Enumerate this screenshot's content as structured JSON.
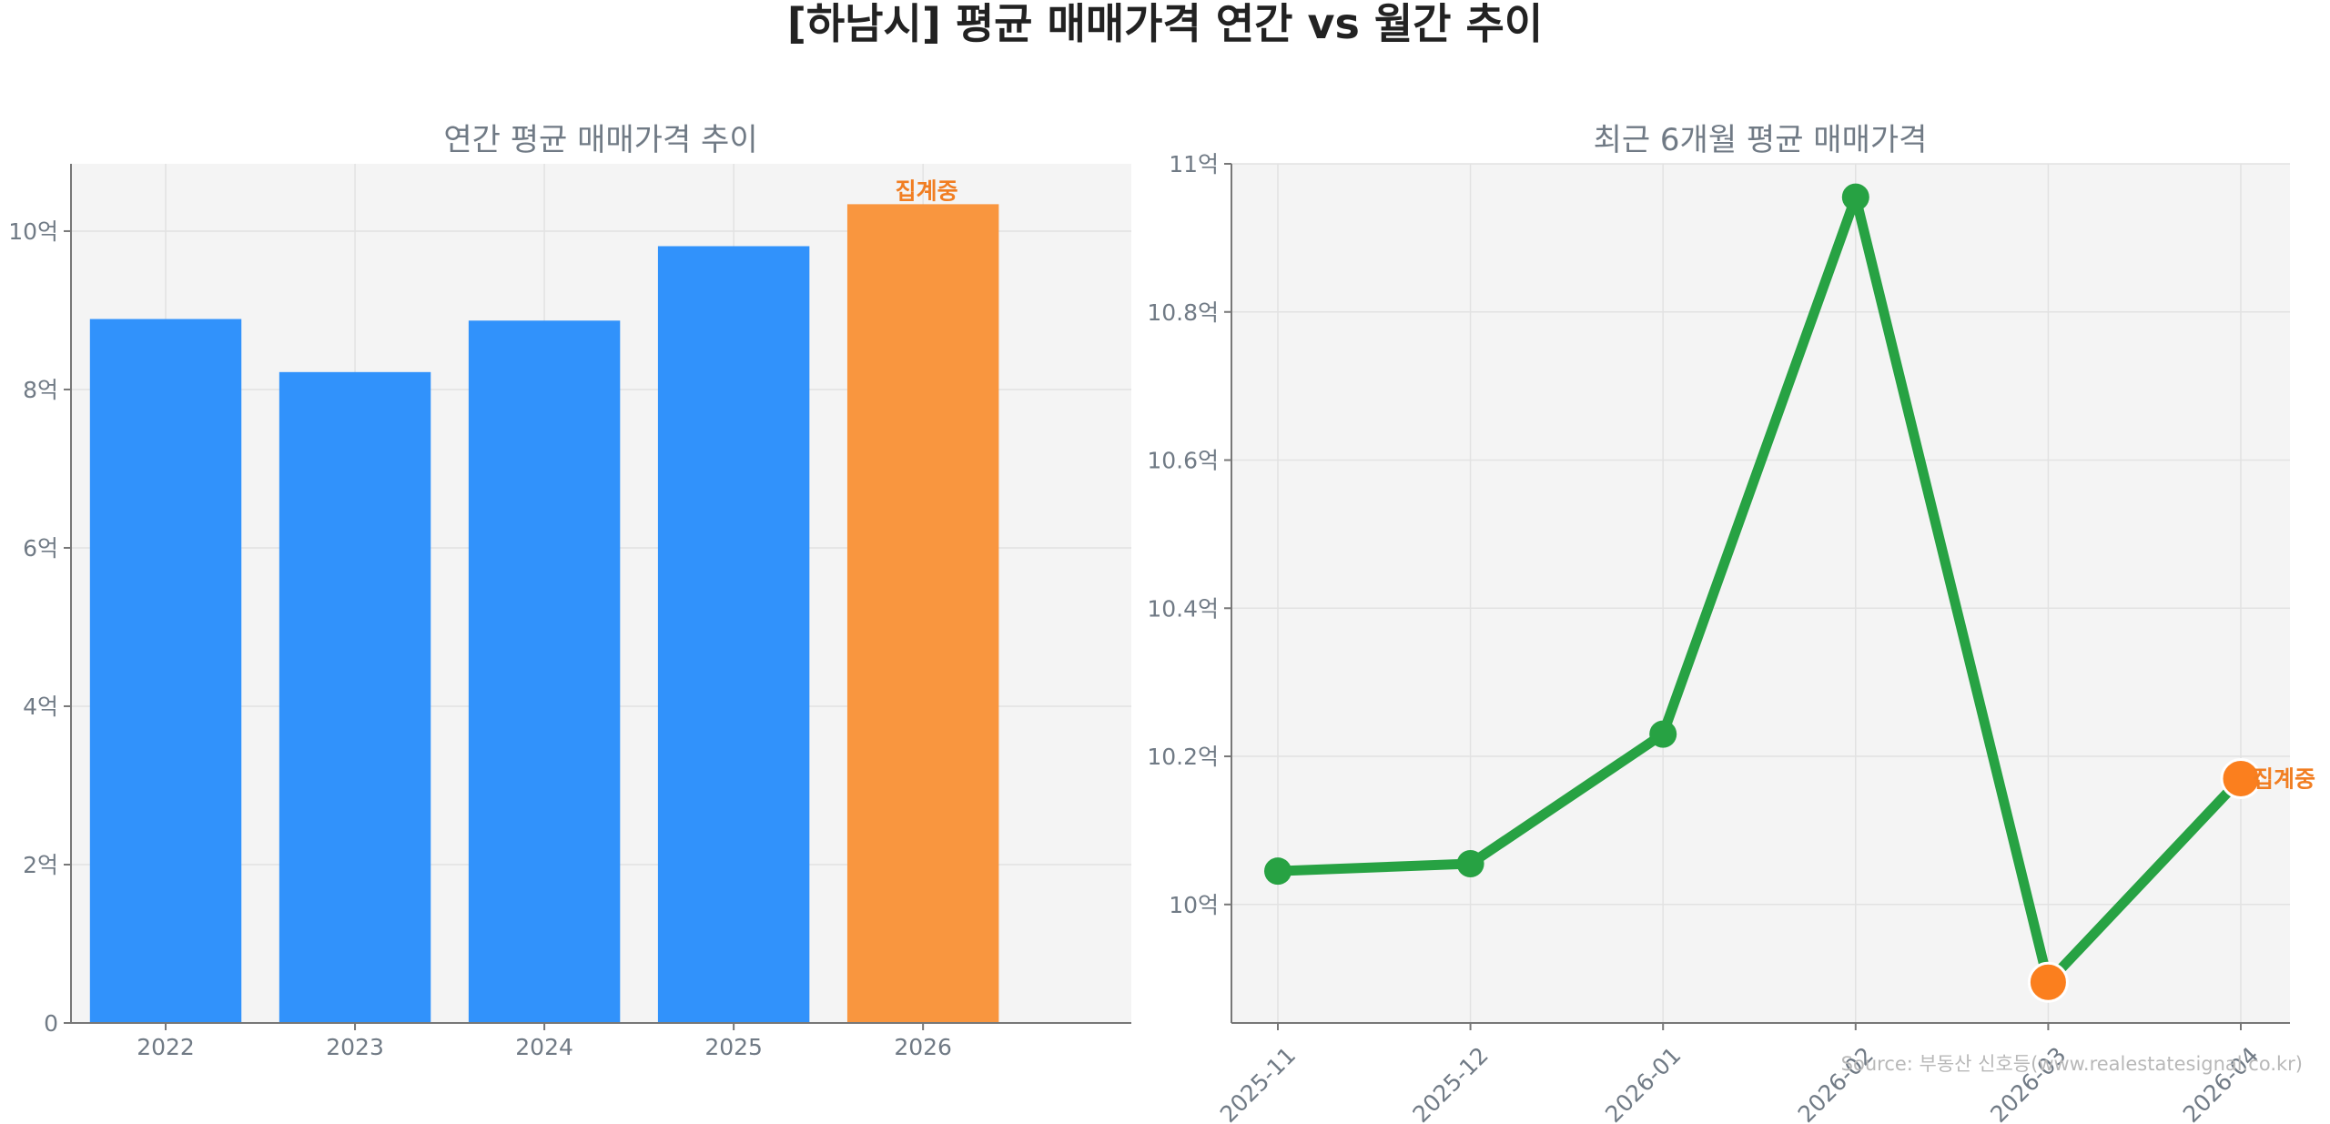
{
  "title": "[하남시] 평균 매매가격 연간 vs 월간 추이",
  "source": "Source: 부동산 신호등(www.realestatesignal.co.kr)",
  "colors": {
    "bar": "#3192fb",
    "partial": "#f9963f",
    "line": "#27a243",
    "partial_marker": "#fb7f1e",
    "panel_bg": "#f4f4f4"
  },
  "chart_data": [
    {
      "type": "bar",
      "title": "연간 평균 매매가격 추이",
      "categories": [
        "2022",
        "2023",
        "2024",
        "2025",
        "2026"
      ],
      "values": [
        8.89,
        8.22,
        8.87,
        9.81,
        10.34
      ],
      "unit": "억",
      "ylim": [
        0,
        10.85
      ],
      "yticks": [
        0,
        2,
        4,
        6,
        8,
        10
      ],
      "ytick_labels": [
        "0",
        "2억",
        "4억",
        "6억",
        "8억",
        "10억"
      ],
      "partial_index": 4,
      "partial_label": "집계중",
      "grid": true
    },
    {
      "type": "line",
      "title": "최근 6개월 평균 매매가격",
      "categories": [
        "2025-11",
        "2025-12",
        "2026-01",
        "2026-02",
        "2026-03",
        "2026-04"
      ],
      "values": [
        10.045,
        10.055,
        10.23,
        10.955,
        9.895,
        10.17
      ],
      "unit": "억",
      "ylim": [
        9.84,
        11.0
      ],
      "yticks": [
        10.0,
        10.2,
        10.4,
        10.6,
        10.8,
        11.0
      ],
      "ytick_labels": [
        "10억",
        "10.2억",
        "10.4억",
        "10.6억",
        "10.8억",
        "11억"
      ],
      "partial_indices": [
        4,
        5
      ],
      "partial_label": "집계중",
      "grid": true
    }
  ]
}
